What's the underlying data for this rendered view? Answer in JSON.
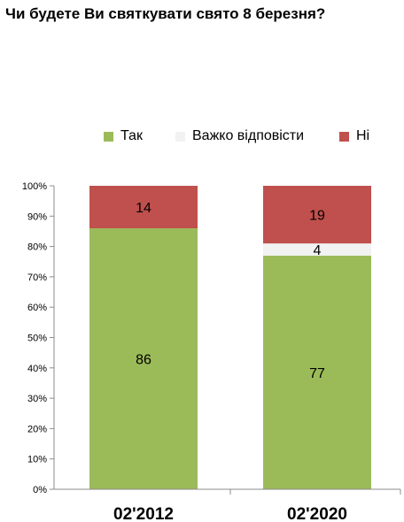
{
  "chart_data": {
    "type": "bar",
    "stacked": true,
    "title": "Чи будете Ви святкувати свято 8 березня?",
    "categories": [
      "02'2012",
      "02'2020"
    ],
    "series": [
      {
        "name": "Так",
        "color": "#9bbb59",
        "values": [
          86,
          77
        ]
      },
      {
        "name": "Важко відповісти",
        "color": "#f2f2f2",
        "values": [
          0,
          4
        ]
      },
      {
        "name": "Ні",
        "color": "#c0504d",
        "values": [
          14,
          19
        ]
      }
    ],
    "ylim": [
      0,
      100
    ],
    "yticks": [
      "0%",
      "10%",
      "20%",
      "30%",
      "40%",
      "50%",
      "60%",
      "70%",
      "80%",
      "90%",
      "100%"
    ],
    "legend_position": "top",
    "grid": false
  }
}
